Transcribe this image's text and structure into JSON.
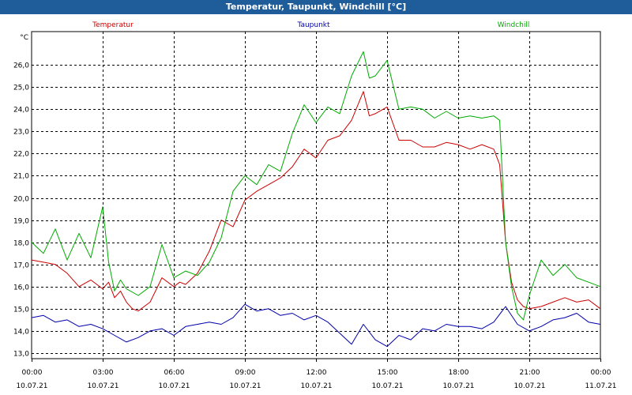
{
  "window": {
    "title": "Temperatur, Taupunkt, Windchill [°C]"
  },
  "chart_data": {
    "type": "line",
    "title": "Temperatur, Taupunkt, Windchill [°C]",
    "ylabel": "°C",
    "xlabel": "",
    "ylim": [
      12.75,
      27.5
    ],
    "xlim": [
      0,
      24
    ],
    "grid": true,
    "legend_position": "top",
    "yticks": [
      13.0,
      14.0,
      15.0,
      16.0,
      17.0,
      18.0,
      19.0,
      20.0,
      21.0,
      22.0,
      23.0,
      24.0,
      25.0,
      26.0
    ],
    "ytick_labels": [
      "13,0",
      "14,0",
      "15,0",
      "16,0",
      "17,0",
      "18,0",
      "19,0",
      "20,0",
      "21,0",
      "22,0",
      "23,0",
      "24,0",
      "25,0",
      "26,0"
    ],
    "xticks": [
      0,
      3,
      6,
      9,
      12,
      15,
      18,
      21,
      24
    ],
    "xtick_times": [
      "00:00",
      "03:00",
      "06:00",
      "09:00",
      "12:00",
      "15:00",
      "18:00",
      "21:00",
      "00:00"
    ],
    "xtick_dates": [
      "10.07.21",
      "10.07.21",
      "10.07.21",
      "10.07.21",
      "10.07.21",
      "10.07.21",
      "10.07.21",
      "10.07.21",
      "11.07.21"
    ],
    "series": [
      {
        "name": "Temperatur",
        "color": "#cc0000",
        "x": [
          0,
          0.5,
          1,
          1.5,
          2,
          2.5,
          3,
          3.25,
          3.5,
          3.75,
          4,
          4.25,
          4.5,
          4.75,
          5,
          5.5,
          6,
          6.25,
          6.5,
          7,
          7.5,
          8,
          8.5,
          9,
          9.5,
          10,
          10.5,
          11,
          11.5,
          12,
          12.5,
          13,
          13.5,
          14,
          14.25,
          14.5,
          15,
          15.5,
          16,
          16.5,
          17,
          17.5,
          18,
          18.5,
          19,
          19.5,
          19.75,
          20,
          20.25,
          20.5,
          20.75,
          21,
          21.5,
          22,
          22.5,
          23,
          23.5,
          24
        ],
        "y": [
          17.2,
          17.1,
          17.0,
          16.6,
          16.0,
          16.3,
          15.9,
          16.2,
          15.5,
          15.8,
          15.3,
          15.0,
          14.9,
          15.1,
          15.3,
          16.4,
          16.0,
          16.2,
          16.1,
          16.6,
          17.6,
          19.0,
          18.7,
          19.9,
          20.3,
          20.6,
          20.9,
          21.4,
          22.2,
          21.8,
          22.6,
          22.8,
          23.5,
          24.8,
          23.7,
          23.8,
          24.1,
          22.6,
          22.6,
          22.3,
          22.3,
          22.5,
          22.4,
          22.2,
          22.4,
          22.2,
          21.5,
          18.0,
          16.2,
          15.4,
          15.1,
          15.0,
          15.1,
          15.3,
          15.5,
          15.3,
          15.4,
          15.0
        ]
      },
      {
        "name": "Taupunkt",
        "color": "#0000aa",
        "x": [
          0,
          0.5,
          1,
          1.5,
          2,
          2.5,
          3,
          3.5,
          4,
          4.5,
          5,
          5.5,
          6,
          6.5,
          7,
          7.5,
          8,
          8.5,
          9,
          9.5,
          10,
          10.5,
          11,
          11.5,
          12,
          12.5,
          13,
          13.5,
          14,
          14.5,
          15,
          15.5,
          16,
          16.5,
          17,
          17.5,
          18,
          18.5,
          19,
          19.5,
          20,
          20.5,
          21,
          21.5,
          22,
          22.5,
          23,
          23.5,
          24
        ],
        "y": [
          14.6,
          14.7,
          14.4,
          14.5,
          14.2,
          14.3,
          14.1,
          13.8,
          13.5,
          13.7,
          14.0,
          14.1,
          13.8,
          14.2,
          14.3,
          14.4,
          14.3,
          14.6,
          15.2,
          14.9,
          15.0,
          14.7,
          14.8,
          14.5,
          14.7,
          14.4,
          13.9,
          13.4,
          14.3,
          13.6,
          13.3,
          13.8,
          13.6,
          14.1,
          14.0,
          14.3,
          14.2,
          14.2,
          14.1,
          14.4,
          15.1,
          14.3,
          14.0,
          14.2,
          14.5,
          14.6,
          14.8,
          14.4,
          14.3
        ]
      },
      {
        "name": "Windchill",
        "color": "#00aa00",
        "x": [
          0,
          0.5,
          1,
          1.5,
          2,
          2.5,
          3,
          3.25,
          3.5,
          3.75,
          4,
          4.5,
          5,
          5.5,
          6,
          6.5,
          7,
          7.5,
          8,
          8.5,
          9,
          9.5,
          10,
          10.5,
          11,
          11.5,
          12,
          12.5,
          13,
          13.5,
          14,
          14.25,
          14.5,
          15,
          15.5,
          16,
          16.5,
          17,
          17.5,
          18,
          18.5,
          19,
          19.5,
          19.75,
          20,
          20.25,
          20.5,
          20.75,
          21,
          21.5,
          22,
          22.5,
          23,
          23.5,
          24
        ],
        "y": [
          18.0,
          17.5,
          18.6,
          17.2,
          18.4,
          17.3,
          19.6,
          17.1,
          15.8,
          16.3,
          15.9,
          15.6,
          16.0,
          17.9,
          16.4,
          16.7,
          16.5,
          17.1,
          18.2,
          20.3,
          21.0,
          20.6,
          21.5,
          21.2,
          22.9,
          24.2,
          23.4,
          24.1,
          23.8,
          25.5,
          26.6,
          25.4,
          25.5,
          26.2,
          24.0,
          24.1,
          24.0,
          23.6,
          23.9,
          23.6,
          23.7,
          23.6,
          23.7,
          23.5,
          18.0,
          16.0,
          14.8,
          14.5,
          15.6,
          17.2,
          16.5,
          17.0,
          16.4,
          16.2,
          16.0
        ]
      }
    ]
  }
}
